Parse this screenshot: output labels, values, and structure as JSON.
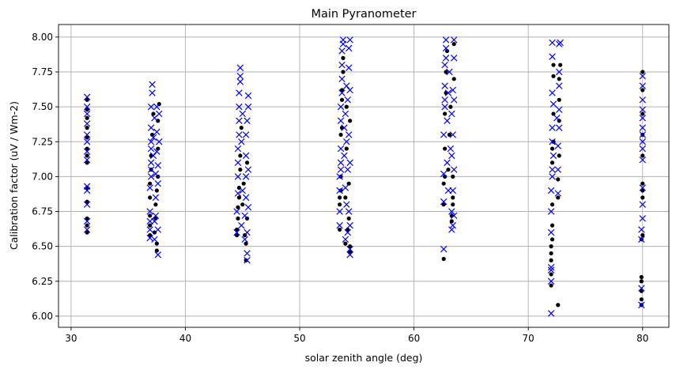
{
  "chart_data": {
    "type": "scatter",
    "title": "Main Pyranometer",
    "xlabel": "solar zenith angle (deg)",
    "ylabel": "Calibration factor (uV / Wm-2)",
    "xlim": [
      28.9,
      82.3
    ],
    "ylim": [
      5.92,
      8.09
    ],
    "xticks": [
      30,
      40,
      50,
      60,
      70,
      80
    ],
    "xtick_labels": [
      "30",
      "40",
      "50",
      "60",
      "70",
      "80"
    ],
    "yticks": [
      6.0,
      6.25,
      6.5,
      6.75,
      7.0,
      7.25,
      7.5,
      7.75,
      8.0
    ],
    "ytick_labels": [
      "6.00",
      "6.25",
      "6.50",
      "6.75",
      "7.00",
      "7.25",
      "7.50",
      "7.75",
      "8.00"
    ],
    "grid": true,
    "series": [
      {
        "marker": "dot",
        "color": "#000000",
        "points": [
          [
            31.4,
            6.6
          ],
          [
            31.4,
            6.65
          ],
          [
            31.4,
            6.7
          ],
          [
            31.4,
            6.82
          ],
          [
            31.4,
            6.92
          ],
          [
            31.4,
            7.1
          ],
          [
            31.4,
            7.15
          ],
          [
            31.4,
            7.2
          ],
          [
            31.4,
            7.28
          ],
          [
            31.4,
            7.35
          ],
          [
            31.4,
            7.42
          ],
          [
            31.4,
            7.48
          ],
          [
            31.4,
            7.55
          ],
          [
            36.9,
            6.58
          ],
          [
            36.9,
            6.65
          ],
          [
            36.9,
            6.72
          ],
          [
            36.9,
            6.85
          ],
          [
            36.9,
            6.95
          ],
          [
            37.0,
            7.05
          ],
          [
            37.0,
            7.15
          ],
          [
            37.1,
            7.3
          ],
          [
            37.2,
            7.45
          ],
          [
            37.3,
            6.6
          ],
          [
            37.4,
            6.7
          ],
          [
            37.4,
            6.8
          ],
          [
            37.5,
            6.47
          ],
          [
            37.5,
            6.52
          ],
          [
            37.5,
            6.9
          ],
          [
            37.6,
            7.0
          ],
          [
            37.6,
            7.2
          ],
          [
            37.6,
            7.4
          ],
          [
            37.7,
            7.52
          ],
          [
            44.5,
            6.58
          ],
          [
            44.5,
            6.62
          ],
          [
            44.6,
            6.7
          ],
          [
            44.6,
            6.78
          ],
          [
            44.7,
            6.85
          ],
          [
            44.7,
            6.92
          ],
          [
            44.8,
            7.05
          ],
          [
            44.8,
            7.15
          ],
          [
            44.9,
            7.35
          ],
          [
            45.0,
            6.8
          ],
          [
            45.1,
            6.95
          ],
          [
            45.2,
            6.58
          ],
          [
            45.3,
            6.4
          ],
          [
            45.3,
            6.52
          ],
          [
            45.4,
            6.7
          ],
          [
            45.4,
            7.1
          ],
          [
            53.5,
            6.62
          ],
          [
            53.5,
            6.8
          ],
          [
            53.5,
            6.85
          ],
          [
            53.6,
            6.9
          ],
          [
            53.6,
            7.0
          ],
          [
            53.6,
            7.3
          ],
          [
            53.7,
            7.35
          ],
          [
            53.7,
            7.55
          ],
          [
            53.7,
            7.62
          ],
          [
            53.8,
            7.75
          ],
          [
            53.8,
            7.85
          ],
          [
            54.0,
            6.52
          ],
          [
            54.0,
            6.85
          ],
          [
            54.1,
            7.2
          ],
          [
            54.1,
            7.5
          ],
          [
            54.2,
            6.62
          ],
          [
            54.3,
            6.7
          ],
          [
            54.3,
            6.95
          ],
          [
            54.4,
            6.46
          ],
          [
            54.4,
            6.5
          ],
          [
            54.4,
            7.4
          ],
          [
            62.6,
            6.41
          ],
          [
            62.6,
            6.8
          ],
          [
            62.6,
            6.95
          ],
          [
            62.7,
            7.0
          ],
          [
            62.7,
            7.2
          ],
          [
            62.7,
            7.45
          ],
          [
            62.8,
            7.6
          ],
          [
            62.8,
            7.75
          ],
          [
            62.9,
            7.9
          ],
          [
            63.0,
            7.05
          ],
          [
            63.1,
            7.3
          ],
          [
            63.2,
            7.5
          ],
          [
            63.3,
            6.68
          ],
          [
            63.3,
            6.72
          ],
          [
            63.4,
            6.8
          ],
          [
            63.4,
            6.85
          ],
          [
            63.4,
            7.0
          ],
          [
            63.5,
            7.7
          ],
          [
            63.5,
            7.95
          ],
          [
            72.0,
            6.22
          ],
          [
            72.0,
            6.3
          ],
          [
            72.0,
            6.4
          ],
          [
            72.0,
            6.45
          ],
          [
            72.0,
            6.5
          ],
          [
            72.1,
            6.55
          ],
          [
            72.1,
            6.65
          ],
          [
            72.1,
            6.8
          ],
          [
            72.1,
            7.1
          ],
          [
            72.1,
            7.2
          ],
          [
            72.2,
            7.25
          ],
          [
            72.2,
            7.45
          ],
          [
            72.2,
            7.72
          ],
          [
            72.2,
            7.8
          ],
          [
            72.6,
            6.08
          ],
          [
            72.6,
            6.85
          ],
          [
            72.6,
            6.98
          ],
          [
            72.7,
            7.15
          ],
          [
            72.7,
            7.4
          ],
          [
            72.7,
            7.55
          ],
          [
            72.7,
            7.7
          ],
          [
            72.8,
            7.8
          ],
          [
            79.9,
            6.08
          ],
          [
            79.9,
            6.12
          ],
          [
            79.9,
            6.18
          ],
          [
            79.9,
            6.25
          ],
          [
            79.9,
            6.28
          ],
          [
            79.9,
            6.55
          ],
          [
            80.0,
            6.58
          ],
          [
            80.0,
            6.85
          ],
          [
            80.0,
            6.9
          ],
          [
            80.0,
            6.95
          ],
          [
            80.0,
            7.15
          ],
          [
            80.0,
            7.3
          ],
          [
            80.0,
            7.45
          ],
          [
            80.0,
            7.62
          ],
          [
            80.0,
            7.75
          ]
        ]
      },
      {
        "marker": "x",
        "color": "#0000ff",
        "points": [
          [
            31.4,
            6.62
          ],
          [
            31.4,
            6.68
          ],
          [
            31.4,
            6.8
          ],
          [
            31.4,
            6.9
          ],
          [
            31.4,
            6.93
          ],
          [
            31.4,
            7.12
          ],
          [
            31.4,
            7.18
          ],
          [
            31.4,
            7.25
          ],
          [
            31.4,
            7.3
          ],
          [
            31.4,
            7.38
          ],
          [
            31.4,
            7.45
          ],
          [
            31.4,
            7.5
          ],
          [
            31.4,
            7.57
          ],
          [
            36.9,
            6.56
          ],
          [
            36.9,
            6.62
          ],
          [
            36.9,
            6.68
          ],
          [
            36.9,
            6.75
          ],
          [
            36.9,
            6.92
          ],
          [
            37.0,
            7.0
          ],
          [
            37.0,
            7.05
          ],
          [
            37.0,
            7.1
          ],
          [
            37.0,
            7.2
          ],
          [
            37.0,
            7.25
          ],
          [
            37.0,
            7.35
          ],
          [
            37.0,
            7.5
          ],
          [
            37.1,
            7.6
          ],
          [
            37.1,
            7.66
          ],
          [
            37.2,
            7.15
          ],
          [
            37.2,
            7.28
          ],
          [
            37.3,
            6.55
          ],
          [
            37.3,
            6.68
          ],
          [
            37.3,
            7.42
          ],
          [
            37.4,
            6.72
          ],
          [
            37.4,
            6.85
          ],
          [
            37.4,
            7.02
          ],
          [
            37.5,
            7.18
          ],
          [
            37.5,
            7.32
          ],
          [
            37.5,
            7.5
          ],
          [
            37.6,
            6.44
          ],
          [
            37.6,
            6.62
          ],
          [
            37.6,
            6.95
          ],
          [
            37.6,
            7.08
          ],
          [
            37.7,
            7.25
          ],
          [
            37.7,
            7.45
          ],
          [
            44.5,
            6.6
          ],
          [
            44.5,
            6.75
          ],
          [
            44.6,
            6.88
          ],
          [
            44.6,
            7.0
          ],
          [
            44.6,
            7.1
          ],
          [
            44.6,
            7.2
          ],
          [
            44.7,
            7.3
          ],
          [
            44.7,
            7.4
          ],
          [
            44.7,
            7.5
          ],
          [
            44.7,
            7.6
          ],
          [
            44.8,
            7.68
          ],
          [
            44.8,
            7.72
          ],
          [
            44.8,
            7.78
          ],
          [
            44.9,
            6.65
          ],
          [
            44.9,
            7.25
          ],
          [
            45.0,
            6.9
          ],
          [
            45.0,
            7.45
          ],
          [
            45.2,
            6.55
          ],
          [
            45.2,
            6.72
          ],
          [
            45.3,
            6.85
          ],
          [
            45.3,
            7.0
          ],
          [
            45.3,
            7.15
          ],
          [
            45.3,
            7.3
          ],
          [
            45.4,
            6.4
          ],
          [
            45.4,
            6.45
          ],
          [
            45.4,
            6.6
          ],
          [
            45.4,
            7.4
          ],
          [
            45.5,
            6.78
          ],
          [
            45.5,
            7.05
          ],
          [
            45.5,
            7.5
          ],
          [
            45.5,
            7.58
          ],
          [
            53.5,
            6.65
          ],
          [
            53.5,
            6.75
          ],
          [
            53.5,
            6.9
          ],
          [
            53.5,
            7.0
          ],
          [
            53.6,
            7.05
          ],
          [
            53.6,
            7.1
          ],
          [
            53.6,
            7.2
          ],
          [
            53.6,
            7.4
          ],
          [
            53.6,
            7.5
          ],
          [
            53.7,
            7.6
          ],
          [
            53.7,
            7.7
          ],
          [
            53.7,
            7.8
          ],
          [
            53.7,
            7.9
          ],
          [
            53.8,
            7.95
          ],
          [
            53.8,
            7.98
          ],
          [
            53.9,
            7.15
          ],
          [
            53.9,
            7.35
          ],
          [
            54.0,
            6.55
          ],
          [
            54.0,
            6.92
          ],
          [
            54.0,
            7.45
          ],
          [
            54.1,
            6.8
          ],
          [
            54.1,
            7.25
          ],
          [
            54.1,
            7.65
          ],
          [
            54.2,
            6.6
          ],
          [
            54.2,
            7.05
          ],
          [
            54.2,
            7.55
          ],
          [
            54.3,
            6.75
          ],
          [
            54.3,
            7.3
          ],
          [
            54.3,
            7.78
          ],
          [
            54.3,
            7.92
          ],
          [
            54.4,
            6.44
          ],
          [
            54.4,
            6.48
          ],
          [
            54.4,
            6.65
          ],
          [
            54.4,
            7.1
          ],
          [
            54.4,
            7.62
          ],
          [
            54.4,
            7.98
          ],
          [
            62.6,
            6.48
          ],
          [
            62.6,
            6.82
          ],
          [
            62.6,
            7.02
          ],
          [
            62.6,
            7.3
          ],
          [
            62.7,
            7.5
          ],
          [
            62.7,
            7.55
          ],
          [
            62.7,
            7.65
          ],
          [
            62.7,
            7.8
          ],
          [
            62.8,
            7.85
          ],
          [
            62.8,
            7.92
          ],
          [
            62.8,
            7.98
          ],
          [
            62.9,
            7.4
          ],
          [
            62.9,
            7.1
          ],
          [
            63.0,
            6.9
          ],
          [
            63.0,
            7.6
          ],
          [
            63.1,
            7.75
          ],
          [
            63.2,
            7.2
          ],
          [
            63.3,
            6.62
          ],
          [
            63.3,
            6.75
          ],
          [
            63.3,
            7.15
          ],
          [
            63.3,
            7.45
          ],
          [
            63.4,
            6.65
          ],
          [
            63.4,
            6.9
          ],
          [
            63.4,
            7.3
          ],
          [
            63.4,
            7.62
          ],
          [
            63.5,
            6.72
          ],
          [
            63.5,
            7.05
          ],
          [
            63.5,
            7.55
          ],
          [
            63.5,
            7.85
          ],
          [
            63.5,
            7.98
          ],
          [
            72.0,
            6.02
          ],
          [
            72.0,
            6.25
          ],
          [
            72.0,
            6.33
          ],
          [
            72.0,
            6.35
          ],
          [
            72.0,
            6.6
          ],
          [
            72.0,
            6.75
          ],
          [
            72.0,
            6.9
          ],
          [
            72.1,
            7.0
          ],
          [
            72.1,
            7.05
          ],
          [
            72.1,
            7.25
          ],
          [
            72.1,
            7.35
          ],
          [
            72.1,
            7.6
          ],
          [
            72.1,
            7.86
          ],
          [
            72.1,
            7.96
          ],
          [
            72.2,
            7.15
          ],
          [
            72.2,
            7.52
          ],
          [
            72.5,
            7.42
          ],
          [
            72.6,
            6.88
          ],
          [
            72.6,
            7.05
          ],
          [
            72.6,
            7.22
          ],
          [
            72.7,
            7.35
          ],
          [
            72.7,
            7.48
          ],
          [
            72.7,
            7.65
          ],
          [
            72.7,
            7.75
          ],
          [
            72.7,
            7.95
          ],
          [
            72.8,
            7.96
          ],
          [
            79.9,
            6.08
          ],
          [
            79.9,
            6.2
          ],
          [
            79.9,
            6.55
          ],
          [
            79.9,
            6.62
          ],
          [
            80.0,
            6.7
          ],
          [
            80.0,
            6.8
          ],
          [
            80.0,
            6.92
          ],
          [
            80.0,
            7.12
          ],
          [
            80.0,
            7.2
          ],
          [
            80.0,
            7.25
          ],
          [
            80.0,
            7.3
          ],
          [
            80.0,
            7.35
          ],
          [
            80.0,
            7.42
          ],
          [
            80.0,
            7.48
          ],
          [
            80.0,
            7.55
          ],
          [
            80.0,
            7.65
          ],
          [
            80.0,
            7.72
          ]
        ]
      }
    ]
  }
}
